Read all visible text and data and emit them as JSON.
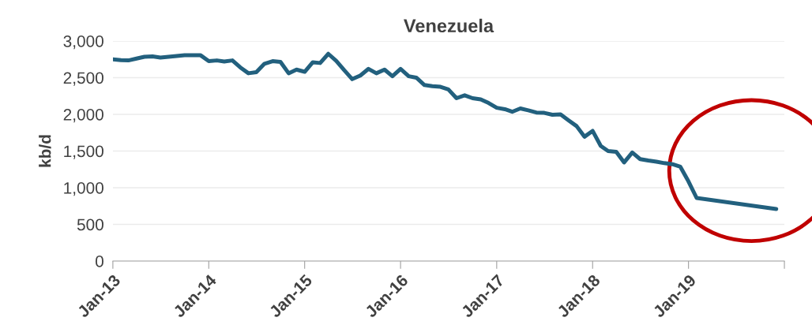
{
  "chart_data": {
    "type": "line",
    "title": "Venezuela",
    "ylabel": "kb/d",
    "x": [
      "2013-01",
      "2013-02",
      "2013-03",
      "2013-04",
      "2013-05",
      "2013-06",
      "2013-07",
      "2013-08",
      "2013-09",
      "2013-10",
      "2013-11",
      "2013-12",
      "2014-01",
      "2014-02",
      "2014-03",
      "2014-04",
      "2014-05",
      "2014-06",
      "2014-07",
      "2014-08",
      "2014-09",
      "2014-10",
      "2014-11",
      "2014-12",
      "2015-01",
      "2015-02",
      "2015-03",
      "2015-04",
      "2015-05",
      "2015-06",
      "2015-07",
      "2015-08",
      "2015-09",
      "2015-10",
      "2015-11",
      "2015-12",
      "2016-01",
      "2016-02",
      "2016-03",
      "2016-04",
      "2016-05",
      "2016-06",
      "2016-07",
      "2016-08",
      "2016-09",
      "2016-10",
      "2016-11",
      "2016-12",
      "2017-01",
      "2017-02",
      "2017-03",
      "2017-04",
      "2017-05",
      "2017-06",
      "2017-07",
      "2017-08",
      "2017-09",
      "2017-10",
      "2017-11",
      "2017-12",
      "2018-01",
      "2018-02",
      "2018-03",
      "2018-04",
      "2018-05",
      "2018-06",
      "2018-07",
      "2018-08",
      "2018-09",
      "2018-10",
      "2018-11",
      "2018-12",
      "2019-01",
      "2019-02",
      "2019-12"
    ],
    "series": [
      {
        "color": "#22607e",
        "values": [
          2750,
          2740,
          2735,
          2760,
          2785,
          2790,
          2775,
          2785,
          2795,
          2805,
          2805,
          2805,
          2725,
          2735,
          2720,
          2735,
          2640,
          2560,
          2575,
          2690,
          2725,
          2715,
          2560,
          2610,
          2580,
          2710,
          2700,
          2825,
          2730,
          2600,
          2480,
          2530,
          2620,
          2560,
          2610,
          2520,
          2620,
          2520,
          2500,
          2400,
          2385,
          2375,
          2340,
          2220,
          2260,
          2220,
          2205,
          2155,
          2090,
          2070,
          2035,
          2080,
          2055,
          2025,
          2020,
          1995,
          2000,
          1920,
          1840,
          1695,
          1775,
          1570,
          1500,
          1490,
          1345,
          1480,
          1390,
          1370,
          1355,
          1335,
          1320,
          1285,
          1085,
          860,
          710
        ]
      }
    ],
    "xlim": [
      "2013-01",
      "2020-01"
    ],
    "xticks": [
      {
        "value": "2013-01",
        "label": "Jan-13"
      },
      {
        "value": "2014-01",
        "label": "Jan-14"
      },
      {
        "value": "2015-01",
        "label": "Jan-15"
      },
      {
        "value": "2016-01",
        "label": "Jan-16"
      },
      {
        "value": "2017-01",
        "label": "Jan-17"
      },
      {
        "value": "2018-01",
        "label": "Jan-18"
      },
      {
        "value": "2019-01",
        "label": "Jan-19"
      },
      {
        "value": "2020-01",
        "label": null
      }
    ],
    "ylim": [
      0,
      3000
    ],
    "yticks": [
      {
        "value": 0,
        "label": "0"
      },
      {
        "value": 500,
        "label": "500"
      },
      {
        "value": 1000,
        "label": "1,000"
      },
      {
        "value": 1500,
        "label": "1,500"
      },
      {
        "value": 2000,
        "label": "2,000"
      },
      {
        "value": 2500,
        "label": "2,500"
      },
      {
        "value": 3000,
        "label": "3,000"
      }
    ],
    "grid": "y",
    "marker": "none",
    "line_style": "solid"
  }
}
